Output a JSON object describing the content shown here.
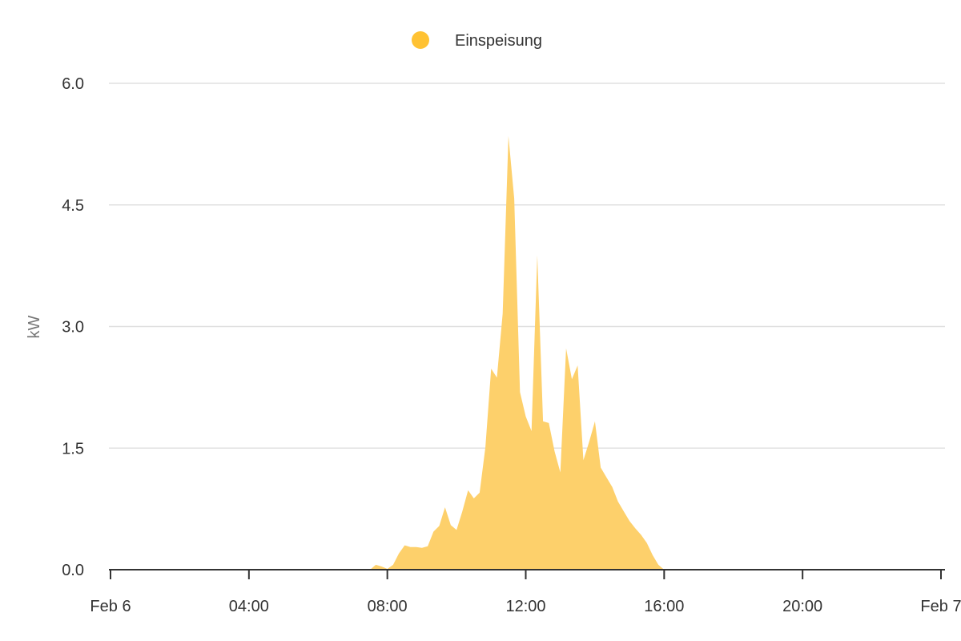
{
  "chart_data": {
    "type": "area",
    "title": "",
    "xlabel": "",
    "ylabel": "kW",
    "ylim": [
      0,
      6.0
    ],
    "yticks": [
      "0.0",
      "1.5",
      "3.0",
      "4.5",
      "6.0"
    ],
    "xlim": [
      "Feb 6 00:00",
      "Feb 7 00:00"
    ],
    "xticks": [
      "Feb 6",
      "04:00",
      "08:00",
      "12:00",
      "16:00",
      "20:00",
      "Feb 7"
    ],
    "grid": true,
    "legend_position": "top",
    "series": [
      {
        "name": "Einspeisung",
        "color": "#FFC233",
        "fill_color": "#FDD06B",
        "x": [
          "07:30",
          "07:40",
          "07:50",
          "08:00",
          "08:10",
          "08:20",
          "08:30",
          "08:40",
          "08:50",
          "09:00",
          "09:10",
          "09:20",
          "09:30",
          "09:40",
          "09:50",
          "10:00",
          "10:10",
          "10:20",
          "10:30",
          "10:40",
          "10:50",
          "11:00",
          "11:10",
          "11:20",
          "11:30",
          "11:40",
          "11:50",
          "12:00",
          "12:10",
          "12:20",
          "12:30",
          "12:40",
          "12:50",
          "13:00",
          "13:10",
          "13:20",
          "13:30",
          "13:40",
          "13:50",
          "14:00",
          "14:10",
          "14:20",
          "14:30",
          "14:40",
          "14:50",
          "15:00",
          "15:10",
          "15:20",
          "15:30",
          "15:40",
          "15:50",
          "16:00"
        ],
        "values": [
          0,
          0.06,
          0.04,
          0.01,
          0.06,
          0.2,
          0.3,
          0.28,
          0.28,
          0.27,
          0.29,
          0.47,
          0.54,
          0.77,
          0.55,
          0.49,
          0.72,
          0.98,
          0.88,
          0.95,
          1.51,
          2.48,
          2.37,
          3.16,
          5.35,
          4.58,
          2.19,
          1.89,
          1.71,
          3.88,
          1.83,
          1.81,
          1.46,
          1.2,
          2.73,
          2.35,
          2.52,
          1.35,
          1.58,
          1.83,
          1.26,
          1.14,
          1.02,
          0.84,
          0.72,
          0.6,
          0.51,
          0.43,
          0.33,
          0.18,
          0.06,
          0
        ]
      }
    ]
  }
}
